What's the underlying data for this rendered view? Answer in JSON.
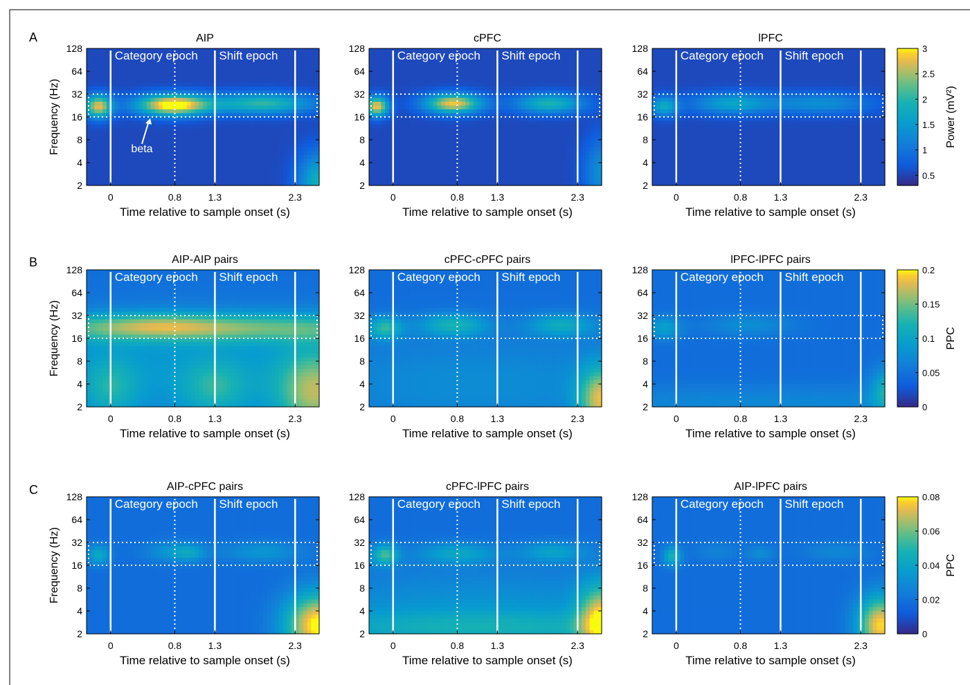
{
  "figure": {
    "panel_letters": [
      "A",
      "B",
      "C"
    ],
    "beta_label": "beta"
  },
  "chart_data": [
    {
      "type": "heatmap",
      "row": "A",
      "title": "AIP",
      "metric": "power",
      "xlabel": "Time relative to sample onset (s)",
      "ylabel": "Frequency (Hz)",
      "x_ticks": [
        "0",
        "0.8",
        "1.3",
        "2.3"
      ],
      "y_ticks": [
        "128",
        "64",
        "32",
        "16",
        "8",
        "4",
        "2"
      ],
      "y_scale": "log2",
      "xlim": [
        -0.3,
        2.6
      ],
      "ylim": [
        2,
        128
      ],
      "epoch_labels": [
        "Category epoch",
        "Shift epoch"
      ],
      "blobs": [
        {
          "t": -0.15,
          "f": 22,
          "st": 0.12,
          "sf": 0.35,
          "v": 2.2
        },
        {
          "t": 0.78,
          "f": 23,
          "st": 0.32,
          "sf": 0.32,
          "v": 2.7
        },
        {
          "t": 1.9,
          "f": 24,
          "st": 0.45,
          "sf": 0.32,
          "v": 1.5
        },
        {
          "t": 2.6,
          "f": 2.2,
          "st": 0.18,
          "sf": 0.9,
          "v": 1.3
        }
      ]
    },
    {
      "type": "heatmap",
      "row": "A",
      "title": "cPFC",
      "metric": "power",
      "xlabel": "Time relative to sample onset (s)",
      "ylabel": "",
      "x_ticks": [
        "0",
        "0.8",
        "1.3",
        "2.3"
      ],
      "y_ticks": [
        "128",
        "64",
        "32",
        "16",
        "8",
        "4",
        "2"
      ],
      "y_scale": "log2",
      "xlim": [
        -0.3,
        2.6
      ],
      "ylim": [
        2,
        128
      ],
      "epoch_labels": [
        "Category epoch",
        "Shift epoch"
      ],
      "blobs": [
        {
          "t": -0.2,
          "f": 22,
          "st": 0.1,
          "sf": 0.3,
          "v": 2.3
        },
        {
          "t": 0.75,
          "f": 24,
          "st": 0.25,
          "sf": 0.3,
          "v": 2.3
        },
        {
          "t": 1.95,
          "f": 24,
          "st": 0.3,
          "sf": 0.3,
          "v": 1.4
        },
        {
          "t": 2.6,
          "f": 3.0,
          "st": 0.15,
          "sf": 1.0,
          "v": 0.8
        }
      ]
    },
    {
      "type": "heatmap",
      "row": "A",
      "title": "lPFC",
      "metric": "power",
      "xlabel": "Time relative to sample onset (s)",
      "ylabel": "",
      "x_ticks": [
        "0",
        "0.8",
        "1.3",
        "2.3"
      ],
      "y_ticks": [
        "128",
        "64",
        "32",
        "16",
        "8",
        "4",
        "2"
      ],
      "y_scale": "log2",
      "xlim": [
        -0.3,
        2.6
      ],
      "ylim": [
        2,
        128
      ],
      "epoch_labels": [
        "Category epoch",
        "Shift epoch"
      ],
      "blobs": [
        {
          "t": -0.15,
          "f": 22,
          "st": 0.12,
          "sf": 0.3,
          "v": 1.2
        },
        {
          "t": 0.7,
          "f": 24,
          "st": 0.35,
          "sf": 0.32,
          "v": 1.1
        },
        {
          "t": 1.8,
          "f": 24,
          "st": 0.45,
          "sf": 0.32,
          "v": 0.8
        }
      ]
    },
    {
      "type": "heatmap",
      "row": "B",
      "title": "AIP-AIP pairs",
      "metric": "ppc",
      "xlabel": "Time relative to sample onset (s)",
      "ylabel": "Frequency (Hz)",
      "x_ticks": [
        "0",
        "0.8",
        "1.3",
        "2.3"
      ],
      "y_ticks": [
        "128",
        "64",
        "32",
        "16",
        "8",
        "4",
        "2"
      ],
      "y_scale": "log2",
      "xlim": [
        -0.3,
        2.6
      ],
      "ylim": [
        2,
        128
      ],
      "epoch_labels": [
        "Category epoch",
        "Shift epoch"
      ],
      "blobs": [
        {
          "t": 1.1,
          "f": 22,
          "st": 2.0,
          "sf": 0.45,
          "v": 0.09
        },
        {
          "t": 0.6,
          "f": 24,
          "st": 0.5,
          "sf": 0.35,
          "v": 0.03
        },
        {
          "t": 0.0,
          "f": 3.5,
          "st": 0.25,
          "sf": 1.0,
          "v": 0.05
        },
        {
          "t": 1.3,
          "f": 3.5,
          "st": 0.3,
          "sf": 0.9,
          "v": 0.05
        },
        {
          "t": 2.55,
          "f": 3.0,
          "st": 0.35,
          "sf": 1.4,
          "v": 0.1
        },
        {
          "t": 1.0,
          "f": 6.0,
          "st": 2.0,
          "sf": 1.8,
          "v": 0.04
        }
      ]
    },
    {
      "type": "heatmap",
      "row": "B",
      "title": "cPFC-cPFC pairs",
      "metric": "ppc",
      "xlabel": "Time relative to sample onset (s)",
      "ylabel": "",
      "x_ticks": [
        "0",
        "0.8",
        "1.3",
        "2.3"
      ],
      "y_ticks": [
        "128",
        "64",
        "32",
        "16",
        "8",
        "4",
        "2"
      ],
      "y_scale": "log2",
      "xlim": [
        -0.3,
        2.6
      ],
      "ylim": [
        2,
        128
      ],
      "epoch_labels": [
        "Category epoch",
        "Shift epoch"
      ],
      "blobs": [
        {
          "t": -0.1,
          "f": 22,
          "st": 0.15,
          "sf": 0.35,
          "v": 0.08
        },
        {
          "t": 0.75,
          "f": 24,
          "st": 0.3,
          "sf": 0.35,
          "v": 0.07
        },
        {
          "t": 2.1,
          "f": 24,
          "st": 0.3,
          "sf": 0.35,
          "v": 0.06
        },
        {
          "t": 1.1,
          "f": 4.0,
          "st": 2.0,
          "sf": 1.5,
          "v": 0.03
        },
        {
          "t": 2.6,
          "f": 2.5,
          "st": 0.2,
          "sf": 1.0,
          "v": 0.12
        }
      ]
    },
    {
      "type": "heatmap",
      "row": "B",
      "title": "lPFC-lPFC pairs",
      "metric": "ppc",
      "xlabel": "Time relative to sample onset (s)",
      "ylabel": "",
      "x_ticks": [
        "0",
        "0.8",
        "1.3",
        "2.3"
      ],
      "y_ticks": [
        "128",
        "64",
        "32",
        "16",
        "8",
        "4",
        "2"
      ],
      "y_scale": "log2",
      "xlim": [
        -0.3,
        2.6
      ],
      "ylim": [
        2,
        128
      ],
      "epoch_labels": [
        "Category epoch",
        "Shift epoch"
      ],
      "blobs": [
        {
          "t": -0.15,
          "f": 22,
          "st": 0.15,
          "sf": 0.35,
          "v": 0.05
        },
        {
          "t": 0.9,
          "f": 24,
          "st": 0.4,
          "sf": 0.35,
          "v": 0.03
        },
        {
          "t": 1.1,
          "f": 2.2,
          "st": 2.5,
          "sf": 0.6,
          "v": 0.025
        },
        {
          "t": 2.65,
          "f": 3.3,
          "st": 0.15,
          "sf": 0.7,
          "v": 0.07
        }
      ]
    },
    {
      "type": "heatmap",
      "row": "C",
      "title": "AIP-cPFC pairs",
      "metric": "ppc_small",
      "xlabel": "Time relative to sample onset (s)",
      "ylabel": "Frequency (Hz)",
      "x_ticks": [
        "0",
        "0.8",
        "1.3",
        "2.3"
      ],
      "y_ticks": [
        "128",
        "64",
        "32",
        "16",
        "8",
        "4",
        "2"
      ],
      "y_scale": "log2",
      "xlim": [
        -0.3,
        2.6
      ],
      "ylim": [
        2,
        128
      ],
      "epoch_labels": [
        "Category epoch",
        "Shift epoch"
      ],
      "blobs": [
        {
          "t": -0.15,
          "f": 22,
          "st": 0.1,
          "sf": 0.3,
          "v": 0.025
        },
        {
          "t": 0.8,
          "f": 24,
          "st": 0.25,
          "sf": 0.32,
          "v": 0.018
        },
        {
          "t": 1.0,
          "f": 23,
          "st": 0.12,
          "sf": 0.25,
          "v": 0.012
        },
        {
          "t": 1.9,
          "f": 24,
          "st": 0.35,
          "sf": 0.32,
          "v": 0.016
        },
        {
          "t": 2.6,
          "f": 2.6,
          "st": 0.3,
          "sf": 1.0,
          "v": 0.065
        }
      ]
    },
    {
      "type": "heatmap",
      "row": "C",
      "title": "cPFC-lPFC pairs",
      "metric": "ppc_small",
      "xlabel": "Time relative to sample onset (s)",
      "ylabel": "",
      "x_ticks": [
        "0",
        "0.8",
        "1.3",
        "2.3"
      ],
      "y_ticks": [
        "128",
        "64",
        "32",
        "16",
        "8",
        "4",
        "2"
      ],
      "y_scale": "log2",
      "xlim": [
        -0.3,
        2.6
      ],
      "ylim": [
        2,
        128
      ],
      "epoch_labels": [
        "Category epoch",
        "Shift epoch"
      ],
      "blobs": [
        {
          "t": -0.1,
          "f": 22,
          "st": 0.12,
          "sf": 0.32,
          "v": 0.035
        },
        {
          "t": 0.8,
          "f": 23,
          "st": 0.35,
          "sf": 0.32,
          "v": 0.022
        },
        {
          "t": 2.0,
          "f": 24,
          "st": 0.3,
          "sf": 0.32,
          "v": 0.02
        },
        {
          "t": 1.1,
          "f": 6.0,
          "st": 2.0,
          "sf": 1.0,
          "v": 0.012
        },
        {
          "t": 1.1,
          "f": 2.3,
          "st": 2.0,
          "sf": 0.6,
          "v": 0.025
        },
        {
          "t": 2.6,
          "f": 3.0,
          "st": 0.2,
          "sf": 1.1,
          "v": 0.05
        }
      ]
    },
    {
      "type": "heatmap",
      "row": "C",
      "title": "AIP-lPFC pairs",
      "metric": "ppc_small",
      "xlabel": "Time relative to sample onset (s)",
      "ylabel": "",
      "x_ticks": [
        "0",
        "0.8",
        "1.3",
        "2.3"
      ],
      "y_ticks": [
        "128",
        "64",
        "32",
        "16",
        "8",
        "4",
        "2"
      ],
      "y_scale": "log2",
      "xlim": [
        -0.3,
        2.6
      ],
      "ylim": [
        2,
        128
      ],
      "epoch_labels": [
        "Category epoch",
        "Shift epoch"
      ],
      "blobs": [
        {
          "t": -0.05,
          "f": 21,
          "st": 0.08,
          "sf": 0.3,
          "v": 0.03
        },
        {
          "t": 1.05,
          "f": 23,
          "st": 0.12,
          "sf": 0.25,
          "v": 0.012
        },
        {
          "t": 2.0,
          "f": 24,
          "st": 0.3,
          "sf": 0.3,
          "v": 0.01
        },
        {
          "t": 0.5,
          "f": 24,
          "st": 0.2,
          "sf": 0.3,
          "v": 0.008
        },
        {
          "t": 2.55,
          "f": 2.6,
          "st": 0.2,
          "sf": 0.9,
          "v": 0.06
        }
      ]
    }
  ],
  "colorbars": [
    {
      "row": "A",
      "label": "Power (mV²)",
      "ticks": [
        "3",
        "2.5",
        "2",
        "1.5",
        "1",
        "0.5"
      ],
      "tick_values": [
        3,
        2.5,
        2,
        1.5,
        1,
        0.5
      ],
      "range": [
        0.3,
        3
      ],
      "base": 0.55
    },
    {
      "row": "B",
      "label": "PPC",
      "ticks": [
        "0.2",
        "0.15",
        "0.1",
        "0.05",
        "0"
      ],
      "tick_values": [
        0.2,
        0.15,
        0.1,
        0.05,
        0
      ],
      "range": [
        0,
        0.2
      ],
      "base": 0.045
    },
    {
      "row": "C",
      "label": "PPC",
      "ticks": [
        "0.08",
        "0.06",
        "0.04",
        "0.02",
        "0"
      ],
      "tick_values": [
        0.08,
        0.06,
        0.04,
        0.02,
        0
      ],
      "range": [
        0,
        0.08
      ],
      "base": 0.018
    }
  ],
  "colors": {
    "parula_low": "#352a87",
    "parula_mid": "#1ab3b4",
    "parula_high": "#f9fb0e",
    "marker": "#ffffff"
  }
}
